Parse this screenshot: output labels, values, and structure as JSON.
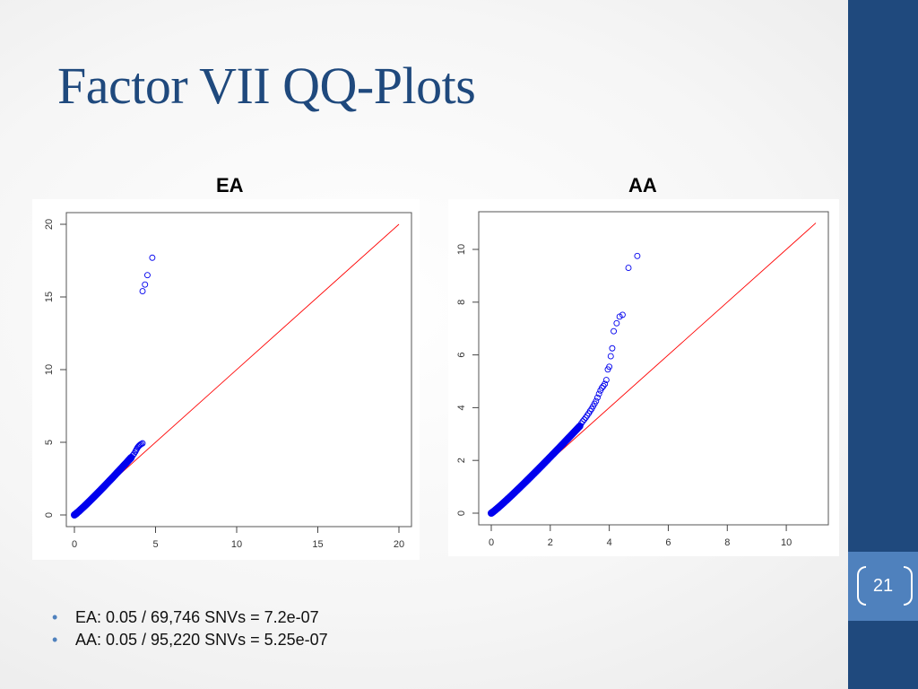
{
  "slide": {
    "title": "Factor VII QQ-Plots",
    "page_number": "21",
    "bullets": [
      "EA: 0.05 / 69,746 SNVs = 7.2e-07",
      "AA: 0.05 / 95,220 SNVs = 5.25e-07"
    ],
    "colors": {
      "title": "#1f497d",
      "sidebar": "#1f497d",
      "badge": "#4f81bd",
      "points": "#0000ee",
      "reference_line": "#ff0000"
    }
  },
  "chart_data": [
    {
      "type": "scatter",
      "label": "EA",
      "title": "EA",
      "xlim": [
        0,
        20
      ],
      "ylim": [
        0,
        20
      ],
      "xticks": [
        0,
        5,
        10,
        15,
        20
      ],
      "yticks": [
        0,
        5,
        10,
        15,
        20
      ],
      "grid": false,
      "reference_line": [
        [
          0,
          0
        ],
        [
          20,
          20
        ]
      ],
      "points": [
        [
          3.5,
          3.95
        ],
        [
          3.6,
          4.1
        ],
        [
          3.68,
          4.22
        ],
        [
          3.75,
          4.35
        ],
        [
          3.8,
          4.45
        ],
        [
          3.85,
          4.55
        ],
        [
          3.9,
          4.65
        ],
        [
          3.95,
          4.72
        ],
        [
          4.0,
          4.78
        ],
        [
          4.05,
          4.83
        ],
        [
          4.12,
          4.88
        ],
        [
          4.2,
          4.93
        ],
        [
          4.2,
          15.4
        ],
        [
          4.35,
          15.85
        ],
        [
          4.5,
          16.5
        ],
        [
          4.8,
          17.7
        ]
      ]
    },
    {
      "type": "scatter",
      "label": "AA",
      "title": "AA",
      "xlim": [
        0,
        11
      ],
      "ylim": [
        0,
        10
      ],
      "xticks": [
        0,
        2,
        4,
        6,
        8,
        10
      ],
      "yticks": [
        0,
        2,
        4,
        6,
        8,
        10
      ],
      "grid": false,
      "reference_line": [
        [
          0,
          0
        ],
        [
          11,
          11
        ]
      ],
      "points": [
        [
          3.0,
          3.3
        ],
        [
          3.05,
          3.4
        ],
        [
          3.1,
          3.48
        ],
        [
          3.15,
          3.55
        ],
        [
          3.2,
          3.62
        ],
        [
          3.25,
          3.7
        ],
        [
          3.3,
          3.78
        ],
        [
          3.35,
          3.87
        ],
        [
          3.4,
          3.95
        ],
        [
          3.45,
          4.05
        ],
        [
          3.5,
          4.15
        ],
        [
          3.55,
          4.25
        ],
        [
          3.6,
          4.38
        ],
        [
          3.65,
          4.52
        ],
        [
          3.7,
          4.65
        ],
        [
          3.75,
          4.75
        ],
        [
          3.8,
          4.82
        ],
        [
          3.85,
          4.9
        ],
        [
          3.9,
          5.05
        ],
        [
          3.95,
          5.45
        ],
        [
          4.0,
          5.55
        ],
        [
          4.05,
          5.95
        ],
        [
          4.1,
          6.25
        ],
        [
          4.15,
          6.9
        ],
        [
          4.25,
          7.2
        ],
        [
          4.35,
          7.45
        ],
        [
          4.45,
          7.52
        ],
        [
          4.65,
          9.3
        ],
        [
          4.95,
          9.75
        ]
      ]
    }
  ]
}
